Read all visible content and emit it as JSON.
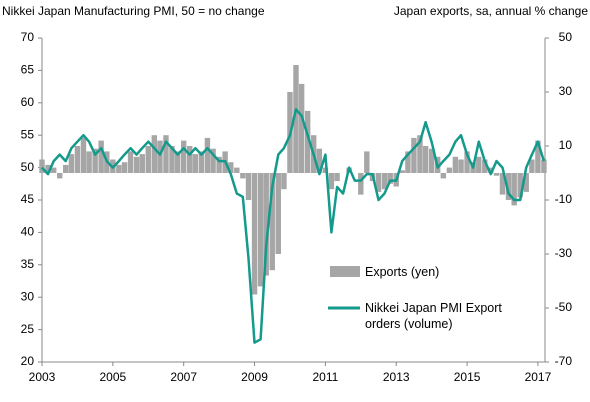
{
  "chart_data": {
    "type": "bar-line",
    "title": "Nikkei Japan Manufacturing PMI, 50 = no change",
    "subtitle": "Japan exports, sa, annual % change",
    "x": [
      2003,
      2003.17,
      2003.33,
      2003.5,
      2003.67,
      2003.83,
      2004,
      2004.17,
      2004.33,
      2004.5,
      2004.67,
      2004.83,
      2005,
      2005.17,
      2005.33,
      2005.5,
      2005.67,
      2005.83,
      2006,
      2006.17,
      2006.33,
      2006.5,
      2006.67,
      2006.83,
      2007,
      2007.17,
      2007.33,
      2007.5,
      2007.67,
      2007.83,
      2008,
      2008.17,
      2008.33,
      2008.5,
      2008.67,
      2008.83,
      2009,
      2009.17,
      2009.33,
      2009.5,
      2009.67,
      2009.83,
      2010,
      2010.17,
      2010.33,
      2010.5,
      2010.67,
      2010.83,
      2011,
      2011.17,
      2011.33,
      2011.5,
      2011.67,
      2011.83,
      2012,
      2012.17,
      2012.33,
      2012.5,
      2012.67,
      2012.83,
      2013,
      2013.17,
      2013.33,
      2013.5,
      2013.67,
      2013.83,
      2014,
      2014.17,
      2014.33,
      2014.5,
      2014.67,
      2014.83,
      2015,
      2015.17,
      2015.33,
      2015.5,
      2015.67,
      2015.83,
      2016,
      2016.17,
      2016.33,
      2016.5,
      2016.67,
      2016.83,
      2017,
      2017.17
    ],
    "series": [
      {
        "name": "Exports (yen)",
        "color": "#a6a6a6",
        "axis": "y2",
        "kind": "bar",
        "values": [
          5,
          3,
          2,
          -2,
          3,
          7,
          10,
          13,
          8,
          9,
          12,
          8,
          5,
          3,
          4,
          8,
          6,
          7,
          10,
          14,
          12,
          14,
          10,
          8,
          12,
          10,
          7,
          8,
          13,
          9,
          6,
          8,
          4,
          2,
          -2,
          -10,
          -45,
          -42,
          -38,
          -36,
          -30,
          -6,
          30,
          40,
          33,
          23,
          14,
          9,
          2,
          -6,
          -3,
          0,
          2,
          0,
          -8,
          8,
          -3,
          -7,
          -6,
          -4,
          -5,
          1,
          8,
          13,
          14,
          10,
          9,
          6,
          -2,
          2,
          6,
          5,
          8,
          4,
          6,
          5,
          2,
          -1,
          -8,
          -10,
          -12,
          -9,
          -7,
          5,
          12,
          5
        ]
      },
      {
        "name": "Nikkei Japan PMI Export orders (volume)",
        "color": "#139a8c",
        "axis": "y",
        "kind": "line",
        "values": [
          50,
          49,
          51,
          52,
          51,
          53,
          54,
          55,
          54,
          52,
          53,
          51,
          50,
          51,
          52,
          53,
          52,
          53,
          54,
          53,
          52,
          54,
          53,
          52,
          53,
          52,
          53,
          52,
          53,
          52,
          51,
          51,
          49,
          46,
          45.5,
          36,
          23,
          23.5,
          38,
          47,
          52,
          53,
          55,
          59,
          58,
          55,
          52,
          49,
          52,
          40,
          47,
          46,
          50,
          48,
          48,
          49,
          49,
          45,
          46,
          48,
          48,
          51,
          52,
          53,
          54,
          57,
          54,
          50,
          51,
          52,
          54,
          55,
          52,
          50,
          54,
          51,
          49,
          51,
          50,
          46,
          45,
          45,
          50,
          52,
          54,
          51
        ]
      }
    ],
    "xlim": [
      2003,
      2017.2
    ],
    "xticks": [
      2003,
      2005,
      2007,
      2009,
      2011,
      2013,
      2015,
      2017
    ],
    "ylim": [
      20,
      70
    ],
    "yticks": [
      20,
      25,
      30,
      35,
      40,
      45,
      50,
      55,
      60,
      65,
      70
    ],
    "y2lim": [
      -70,
      50
    ],
    "y2ticks": [
      -70,
      -50,
      -30,
      -10,
      10,
      30,
      50
    ]
  }
}
